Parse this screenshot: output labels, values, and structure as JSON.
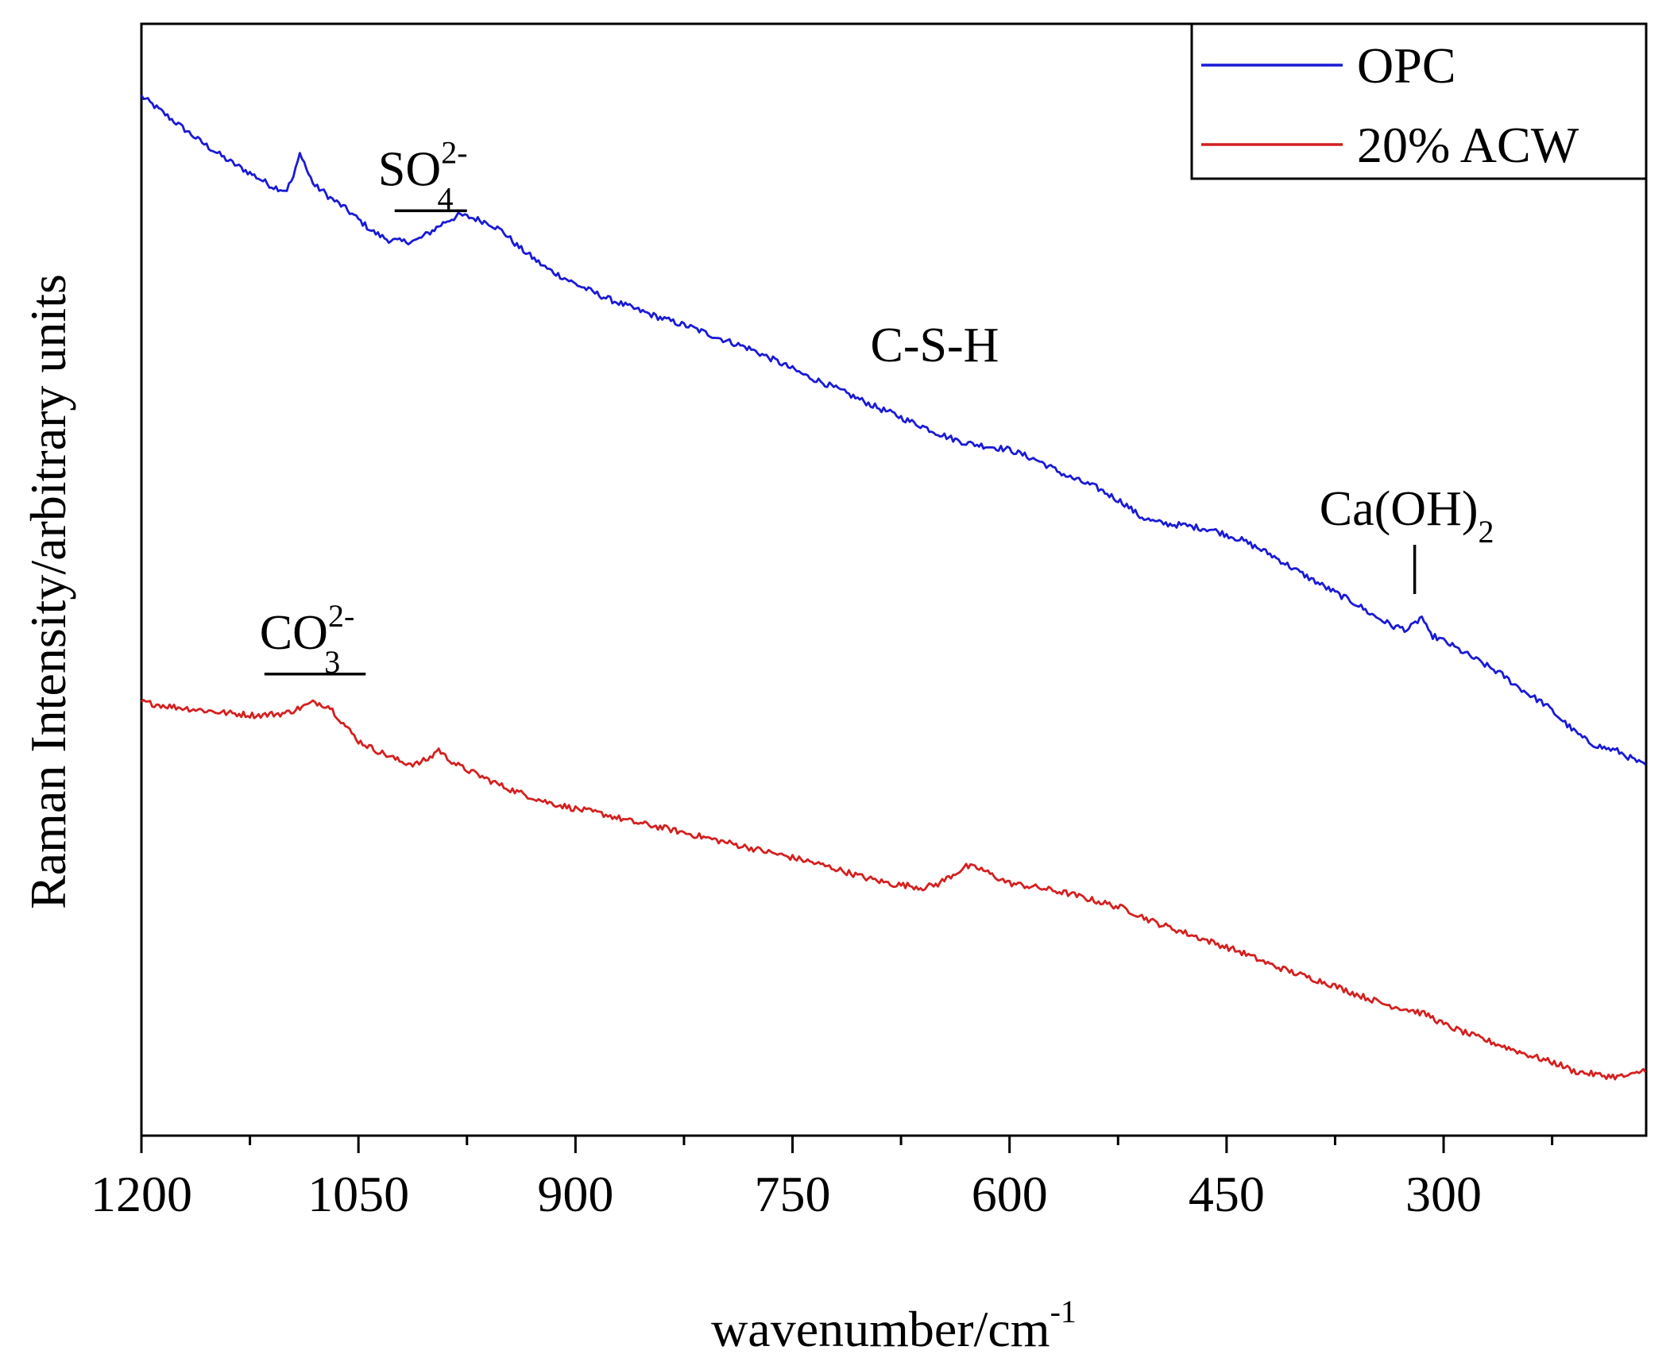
{
  "chart_data": {
    "type": "line",
    "title": "",
    "xlabel": "wavenumber/cm",
    "xlabel_superscript": "-1",
    "ylabel": "Raman Intensity/arbitrary units",
    "xlim": [
      1200,
      160
    ],
    "ylim": [
      0,
      100
    ],
    "x_ticks": [
      1200,
      1050,
      900,
      750,
      600,
      450,
      300
    ],
    "x_tick_labels": [
      "1200",
      "1050",
      "900",
      "750",
      "600",
      "450",
      "300"
    ],
    "x_minor_ticks": [
      1125,
      975,
      825,
      675,
      525,
      375,
      225
    ],
    "y_ticks_shown": false,
    "grid": false,
    "legend_position": "top-right",
    "series": [
      {
        "name": "OPC",
        "color": "#1a1ad6",
        "x": [
          1200,
          1180,
          1160,
          1140,
          1120,
          1110,
          1100,
          1095,
          1090,
          1085,
          1080,
          1075,
          1070,
          1060,
          1050,
          1040,
          1030,
          1020,
          1010,
          1000,
          990,
          980,
          970,
          960,
          950,
          940,
          920,
          900,
          880,
          860,
          840,
          820,
          800,
          780,
          760,
          740,
          730,
          720,
          710,
          700,
          690,
          680,
          670,
          660,
          650,
          640,
          630,
          620,
          600,
          580,
          560,
          540,
          520,
          510,
          500,
          490,
          480,
          460,
          440,
          420,
          400,
          380,
          360,
          350,
          340,
          335,
          330,
          325,
          320,
          315,
          310,
          300,
          280,
          260,
          250,
          240,
          230,
          220,
          210,
          200,
          190,
          180,
          170,
          160
        ],
        "y": [
          93.5,
          91.5,
          89.5,
          87.7,
          86.2,
          85.4,
          85.0,
          86.2,
          88.5,
          86.6,
          85.4,
          85.0,
          84.4,
          83.5,
          82.4,
          81.3,
          80.6,
          80.4,
          80.5,
          81.3,
          82.2,
          82.8,
          82.5,
          82.1,
          81.3,
          80.0,
          78.0,
          76.6,
          75.4,
          74.4,
          73.5,
          72.7,
          71.7,
          70.8,
          69.6,
          68.3,
          67.8,
          67.2,
          66.6,
          66.0,
          65.4,
          64.9,
          64.3,
          63.8,
          63.2,
          62.7,
          62.3,
          62.1,
          61.7,
          60.7,
          59.3,
          58.3,
          56.8,
          55.7,
          55.2,
          55.0,
          54.9,
          54.5,
          53.6,
          52.3,
          50.7,
          49.2,
          47.8,
          46.9,
          46.2,
          45.8,
          45.7,
          45.5,
          46.0,
          46.7,
          45.1,
          44.5,
          43.0,
          41.5,
          40.5,
          39.6,
          38.8,
          37.6,
          36.4,
          35.4,
          34.9,
          34.6,
          33.9,
          33.2
        ]
      },
      {
        "name": "20% ACW",
        "color": "#d42020",
        "x": [
          1200,
          1180,
          1160,
          1140,
          1120,
          1100,
          1090,
          1080,
          1075,
          1070,
          1060,
          1050,
          1040,
          1030,
          1020,
          1010,
          1000,
          995,
          990,
          980,
          970,
          960,
          950,
          940,
          920,
          900,
          880,
          860,
          840,
          820,
          800,
          780,
          760,
          740,
          720,
          700,
          690,
          680,
          670,
          660,
          650,
          640,
          630,
          620,
          610,
          600,
          580,
          560,
          540,
          520,
          500,
          480,
          460,
          440,
          420,
          400,
          380,
          360,
          340,
          320,
          310,
          300,
          280,
          260,
          240,
          230,
          220,
          210,
          200,
          190,
          180,
          170,
          160
        ],
        "y": [
          39.0,
          38.6,
          38.3,
          38.0,
          37.8,
          38.0,
          38.5,
          39.0,
          38.8,
          38.6,
          37.0,
          35.5,
          34.8,
          34.2,
          33.6,
          33.4,
          34.0,
          34.8,
          34.1,
          33.2,
          32.6,
          32.0,
          31.4,
          30.9,
          30.0,
          29.4,
          28.9,
          28.2,
          27.7,
          27.1,
          26.5,
          25.9,
          25.3,
          24.7,
          24.0,
          23.2,
          22.9,
          22.6,
          22.5,
          22.3,
          22.6,
          23.4,
          24.2,
          24.0,
          23.3,
          22.7,
          22.3,
          21.8,
          21.1,
          20.4,
          19.2,
          18.3,
          17.4,
          16.5,
          15.4,
          14.5,
          13.7,
          12.7,
          11.8,
          11.2,
          10.8,
          10.0,
          9.0,
          8.1,
          7.2,
          6.8,
          6.4,
          5.8,
          5.6,
          5.4,
          5.3,
          5.4,
          6.0
        ]
      }
    ],
    "annotations": [
      {
        "text": "SO",
        "subscript": "4",
        "superscript": "2-",
        "x": 1013,
        "y_series": "OPC",
        "type": "bar",
        "bar_from": 1025,
        "bar_to": 975
      },
      {
        "text": "C-S-H",
        "x": 660,
        "y_series": "OPC",
        "type": "label"
      },
      {
        "text": "Ca(OH)",
        "subscript": "2",
        "x": 320,
        "y_series": "OPC",
        "type": "line"
      },
      {
        "text": "CO",
        "subscript": "3",
        "superscript": "2-",
        "x": 1075,
        "y_series": "20% ACW",
        "type": "bar",
        "bar_from": 1115,
        "bar_to": 1045
      }
    ]
  }
}
